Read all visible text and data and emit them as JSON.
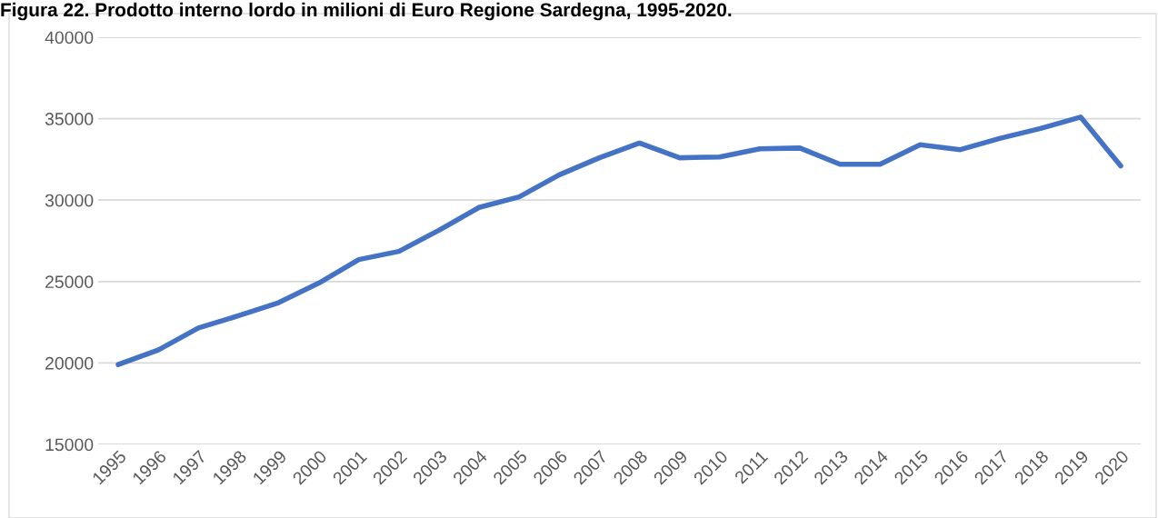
{
  "chart_data": {
    "type": "line",
    "title": "Figura 22. Prodotto interno lordo in milioni di Euro Regione Sardegna, 1995-2020.",
    "categories": [
      "1995",
      "1996",
      "1997",
      "1998",
      "1999",
      "2000",
      "2001",
      "2002",
      "2003",
      "2004",
      "2005",
      "2006",
      "2007",
      "2008",
      "2009",
      "2010",
      "2011",
      "2012",
      "2013",
      "2014",
      "2015",
      "2016",
      "2017",
      "2018",
      "2019",
      "2020"
    ],
    "series": [
      {
        "color": "#4472c4",
        "values": [
          19900,
          20800,
          22150,
          22900,
          23700,
          24900,
          26350,
          26850,
          28150,
          29550,
          30200,
          31550,
          32600,
          33500,
          32600,
          32650,
          33150,
          33200,
          32200,
          32200,
          33400,
          33100,
          33800,
          34400,
          35100,
          32100
        ]
      }
    ],
    "ylim": [
      15000,
      40000
    ],
    "yticks": [
      15000,
      20000,
      25000,
      30000,
      35000,
      40000
    ],
    "grid": "y",
    "marker": "none",
    "line_style": "solid"
  }
}
